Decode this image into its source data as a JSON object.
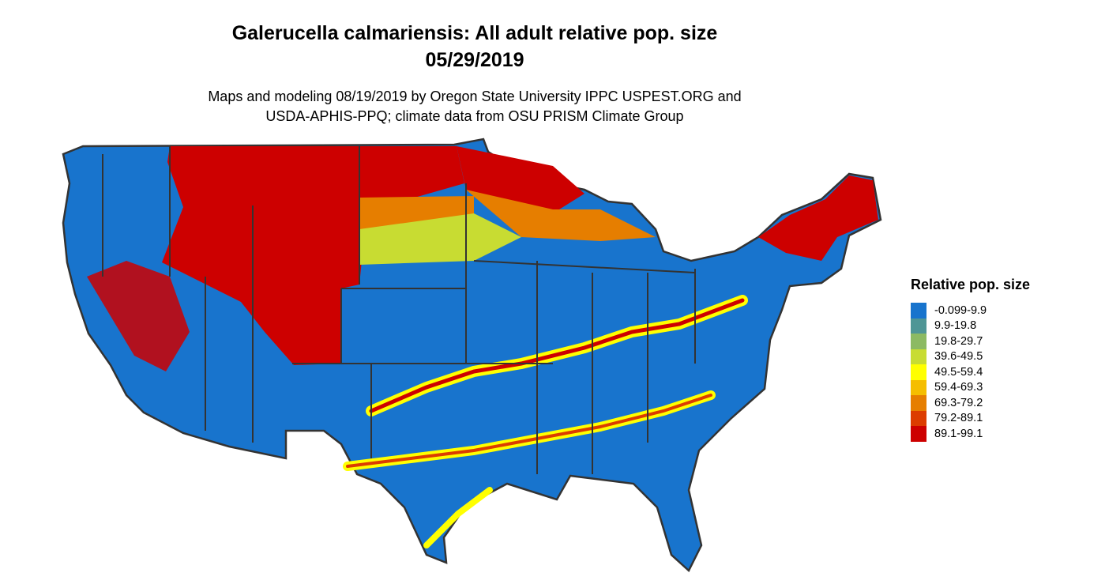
{
  "title_line1": "Galerucella calmariensis: All adult relative pop. size",
  "title_line2": "05/29/2019",
  "subtitle_line1": "Maps and modeling 08/19/2019 by Oregon State University IPPC USPEST.ORG and",
  "subtitle_line2": "USDA-APHIS-PPQ; climate data from OSU PRISM Climate Group",
  "legend": {
    "title": "Relative pop. size",
    "items": [
      {
        "label": "-0.099-9.9",
        "color": "#1874cd"
      },
      {
        "label": "9.9-19.8",
        "color": "#4f9696"
      },
      {
        "label": "19.8-29.7",
        "color": "#8cba63"
      },
      {
        "label": "39.6-49.5",
        "color": "#c8dc32"
      },
      {
        "label": "49.5-59.4",
        "color": "#ffff00"
      },
      {
        "label": "59.4-69.3",
        "color": "#f5be00"
      },
      {
        "label": "69.3-79.2",
        "color": "#e67e00"
      },
      {
        "label": "79.2-89.1",
        "color": "#dc3c00"
      },
      {
        "label": "89.1-99.1",
        "color": "#cd0000"
      }
    ]
  }
}
